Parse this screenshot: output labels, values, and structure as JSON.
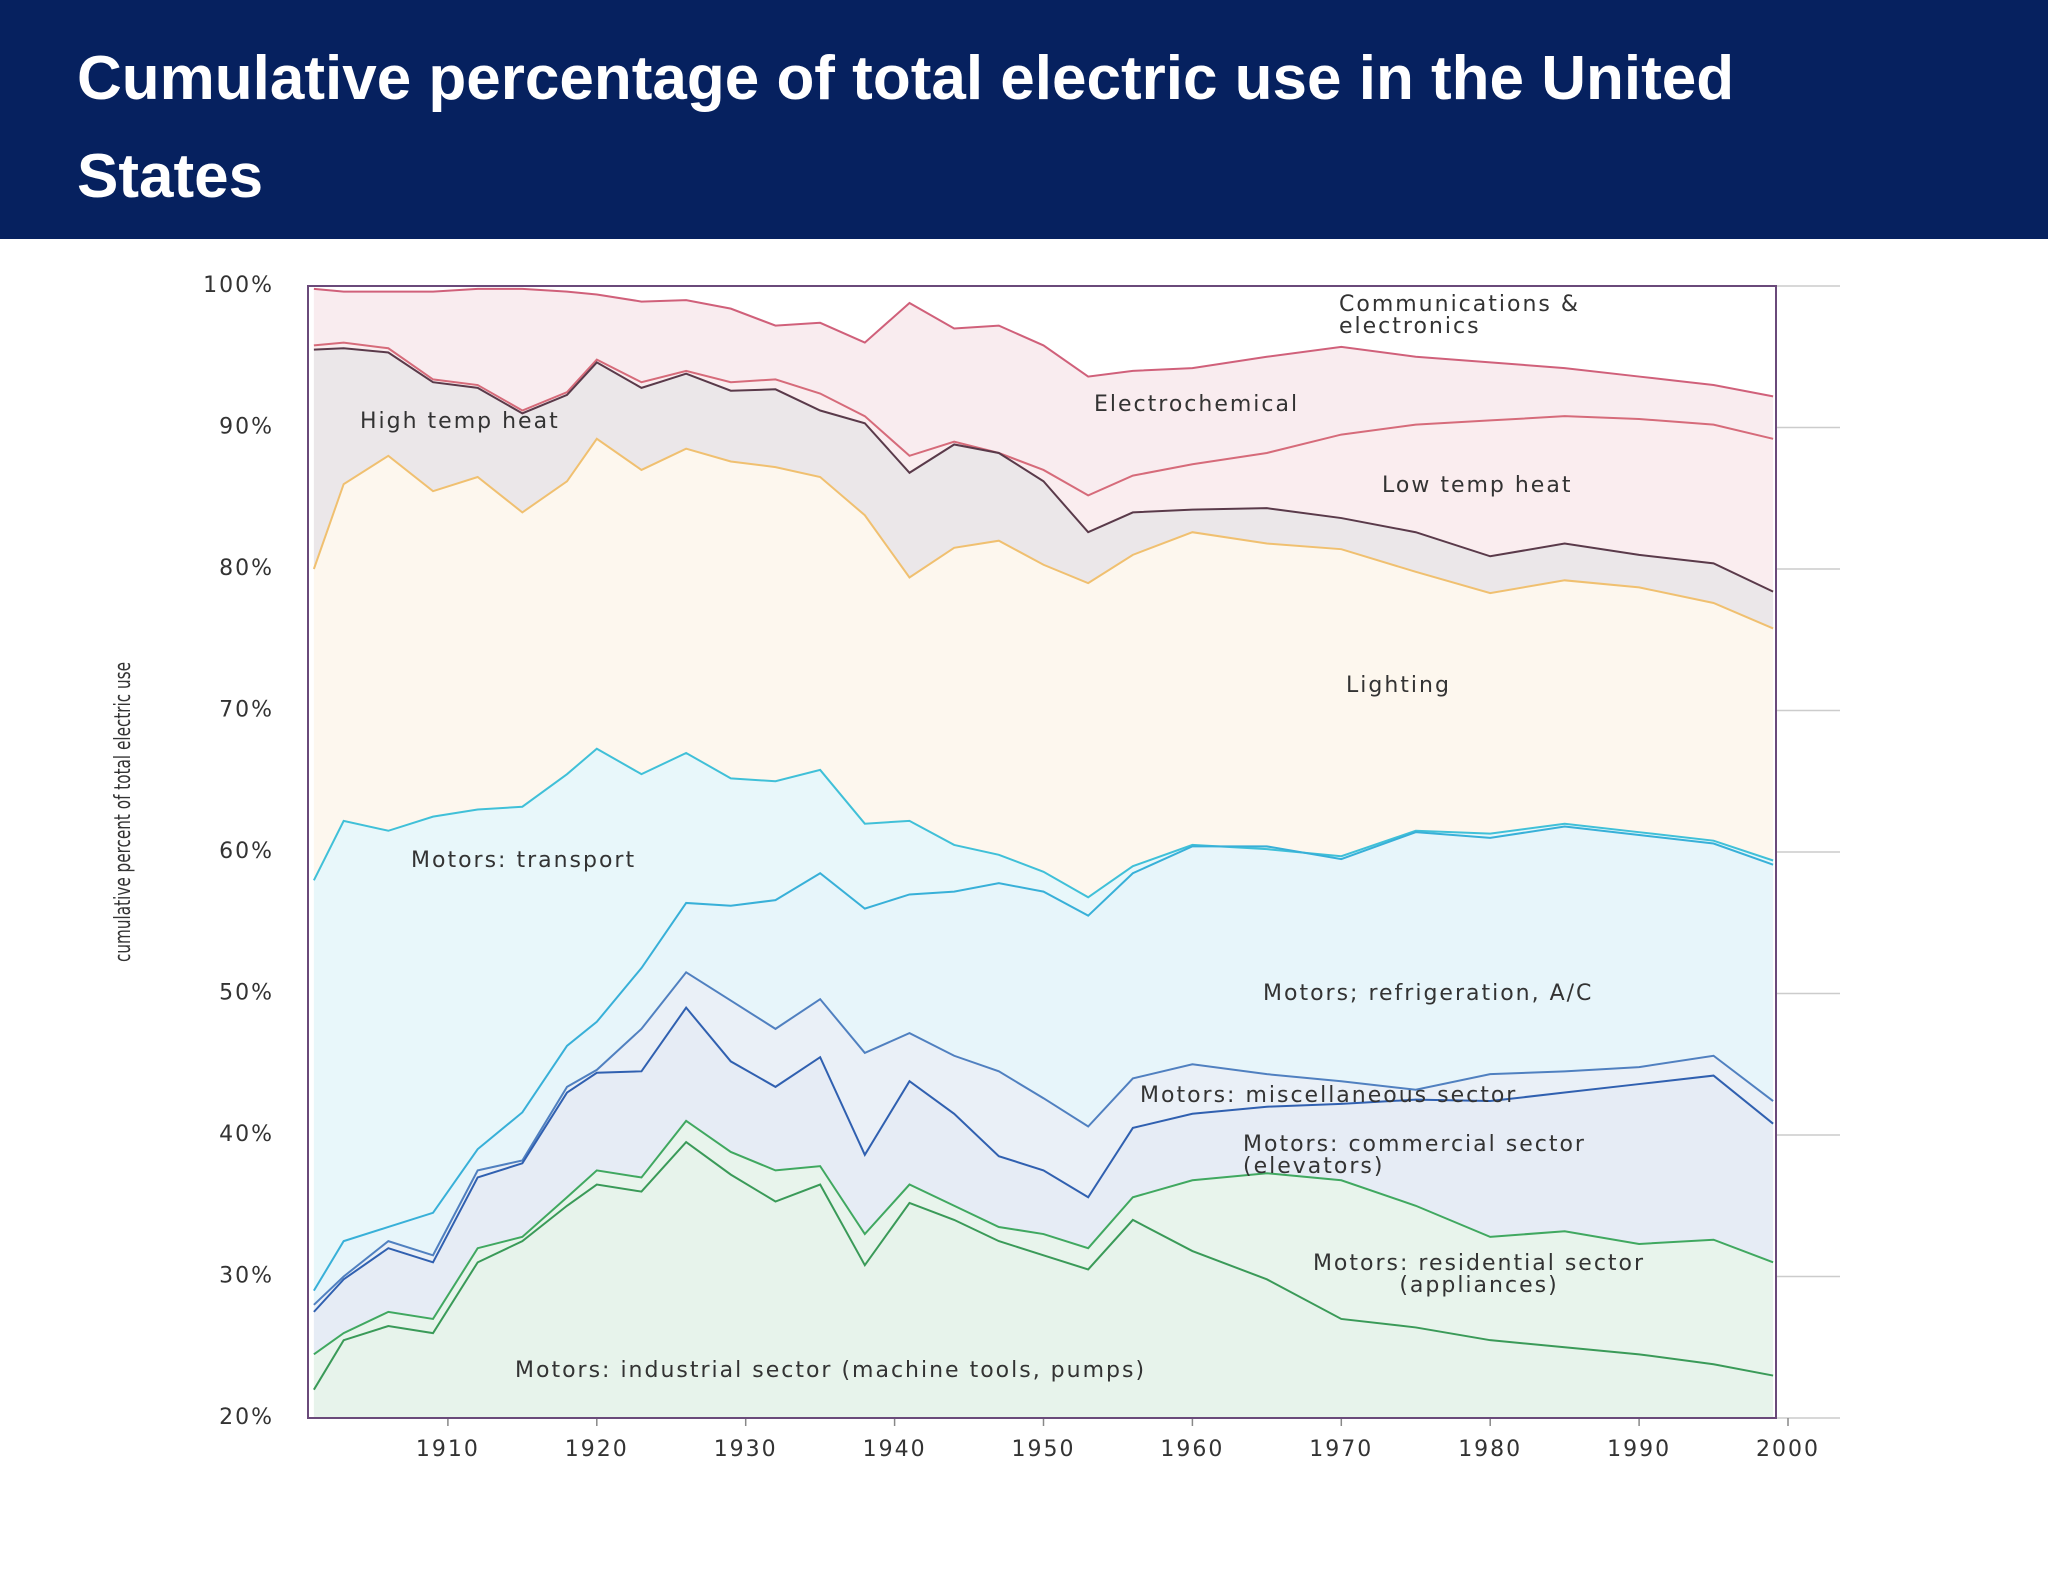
{
  "chart_data": {
    "type": "line",
    "title": "Cumulative percentage of total electric use in the United States",
    "y_label": "cumulative percent of total electric use",
    "x": [
      1901,
      1903,
      1906,
      1909,
      1912,
      1915,
      1918,
      1920,
      1923,
      1926,
      1929,
      1932,
      1935,
      1938,
      1941,
      1944,
      1947,
      1950,
      1953,
      1956,
      1960,
      1965,
      1970,
      1975,
      1980,
      1985,
      1990,
      1995,
      1999
    ],
    "xlim": [
      1900,
      2000
    ],
    "xticks": [
      1910,
      1920,
      1930,
      1940,
      1950,
      1960,
      1970,
      1980,
      1990,
      2000
    ],
    "ylim": [
      20,
      100
    ],
    "yticks": [
      {
        "value": 20,
        "label": "20%"
      },
      {
        "value": 30,
        "label": "30%"
      },
      {
        "value": 40,
        "label": "40%"
      },
      {
        "value": 50,
        "label": "50%"
      },
      {
        "value": 60,
        "label": "60%"
      },
      {
        "value": 70,
        "label": "70%"
      },
      {
        "value": 80,
        "label": "80%"
      },
      {
        "value": 90,
        "label": "90%"
      },
      {
        "value": 100,
        "label": "100%"
      }
    ],
    "series": [
      {
        "name": "Communications & electronics",
        "color": "#7a5a8a",
        "values": [
          100,
          100,
          100,
          100,
          100,
          100,
          100,
          100,
          100,
          100,
          100,
          100,
          100,
          100,
          100,
          100,
          100,
          100,
          100,
          100,
          100,
          100,
          100,
          100,
          100,
          100,
          100,
          100,
          100
        ]
      },
      {
        "name": "Electrochemical",
        "color": "#d0607a",
        "values": [
          99.8,
          99.6,
          99.6,
          99.6,
          99.8,
          99.8,
          99.6,
          99.4,
          98.9,
          99.0,
          98.4,
          97.2,
          97.4,
          96.0,
          98.8,
          97.0,
          97.2,
          95.8,
          93.6,
          94.0,
          94.2,
          95.0,
          95.7,
          95.0,
          94.6,
          94.2,
          93.6,
          93.0,
          92.2
        ]
      },
      {
        "name": "High temp heat",
        "color": "#d66b7a",
        "values": [
          95.8,
          96.0,
          95.6,
          93.4,
          93.0,
          91.2,
          92.5,
          94.8,
          93.2,
          94.0,
          93.2,
          93.4,
          92.4,
          90.8,
          88.0,
          89.0,
          88.2,
          87.0,
          85.2,
          86.6,
          87.4,
          88.2,
          89.5,
          90.2,
          90.5,
          90.8,
          90.6,
          90.2,
          89.2
        ]
      },
      {
        "name": "Low temp heat",
        "color": "#5a3a4a",
        "values": [
          95.5,
          95.6,
          95.3,
          93.2,
          92.8,
          91.0,
          92.3,
          94.6,
          92.8,
          93.8,
          92.6,
          92.7,
          91.2,
          90.3,
          86.8,
          88.8,
          88.2,
          86.2,
          82.6,
          84.0,
          84.2,
          84.3,
          83.6,
          82.6,
          80.9,
          81.8,
          81.0,
          80.4,
          78.4
        ]
      },
      {
        "name": "Lighting",
        "color": "#f0c070",
        "values": [
          80,
          86.0,
          88.0,
          85.5,
          86.5,
          84.0,
          86.2,
          89.2,
          87.0,
          88.5,
          87.6,
          87.2,
          86.5,
          83.8,
          79.4,
          81.5,
          82.0,
          80.3,
          79.0,
          81.0,
          82.6,
          81.8,
          81.4,
          79.8,
          78.3,
          79.2,
          78.7,
          77.6,
          75.8
        ]
      },
      {
        "name": "Motors: transport",
        "color": "#40c0d8",
        "values": [
          58,
          62.2,
          61.5,
          62.5,
          63.0,
          63.2,
          65.5,
          67.3,
          65.5,
          67.0,
          65.2,
          65.0,
          65.8,
          62.0,
          62.2,
          60.5,
          59.8,
          58.6,
          56.8,
          59.0,
          60.5,
          60.2,
          59.7,
          61.5,
          61.3,
          62.0,
          61.4,
          60.8,
          59.4
        ]
      },
      {
        "name": "Motors; refrigeration, A/C",
        "color": "#38b0d8",
        "values": [
          29,
          32.5,
          33.5,
          34.5,
          39.0,
          41.6,
          46.3,
          48.0,
          51.8,
          56.4,
          56.2,
          56.6,
          58.5,
          56.0,
          57.0,
          57.2,
          57.8,
          57.2,
          55.5,
          58.5,
          60.4,
          60.4,
          59.5,
          61.4,
          61.0,
          61.8,
          61.2,
          60.6,
          59.1
        ]
      },
      {
        "name": "Motors: miscellaneous sector",
        "color": "#5080c0",
        "values": [
          28,
          30.0,
          32.5,
          31.5,
          37.5,
          38.2,
          43.4,
          44.6,
          47.5,
          51.5,
          49.5,
          47.5,
          49.6,
          45.8,
          47.2,
          45.6,
          44.5,
          42.6,
          40.6,
          44.0,
          45.0,
          44.3,
          43.8,
          43.2,
          44.3,
          44.5,
          44.8,
          45.6,
          42.4
        ]
      },
      {
        "name": "Motors: commercial sector (elevators)",
        "color": "#3060b0",
        "values": [
          27.5,
          29.8,
          32.0,
          31.0,
          37.0,
          38.0,
          43.0,
          44.4,
          44.5,
          49.0,
          45.2,
          43.4,
          45.5,
          38.6,
          43.8,
          41.5,
          38.5,
          37.5,
          35.6,
          40.5,
          41.5,
          42.0,
          42.2,
          42.5,
          42.4,
          43.0,
          43.6,
          44.2,
          40.8
        ]
      },
      {
        "name": "Motors: residential sector (appliances)",
        "color": "#40a860",
        "values": [
          24.5,
          26.0,
          27.5,
          27.0,
          32.0,
          32.8,
          35.6,
          37.5,
          37.0,
          41.0,
          38.8,
          37.5,
          37.8,
          33.0,
          36.5,
          35.0,
          33.5,
          33.0,
          32.0,
          35.6,
          36.8,
          37.3,
          36.8,
          35.0,
          32.8,
          33.2,
          32.3,
          32.6,
          31.0
        ]
      },
      {
        "name": "Motors: industrial sector (machine tools, pumps)",
        "color": "#3a9a58",
        "values": [
          22,
          25.5,
          26.5,
          26.0,
          31.0,
          32.5,
          35.0,
          36.5,
          36.0,
          39.5,
          37.2,
          35.3,
          36.5,
          30.8,
          35.2,
          34.0,
          32.5,
          31.5,
          30.5,
          34.0,
          31.8,
          29.8,
          27.0,
          26.4,
          25.5,
          25.0,
          24.5,
          23.8,
          23.0
        ]
      }
    ]
  }
}
